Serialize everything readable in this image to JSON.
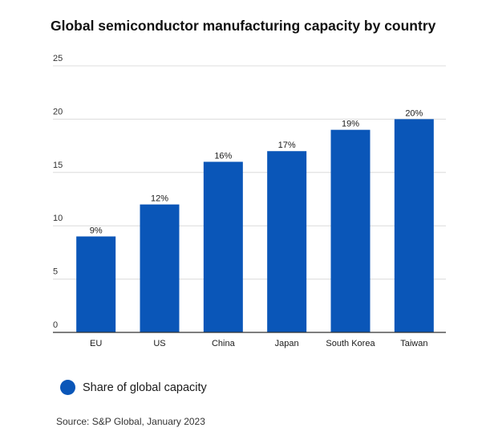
{
  "chart_data": {
    "type": "bar",
    "title": "Global semiconductor manufacturing capacity by country",
    "categories": [
      "EU",
      "US",
      "China",
      "Japan",
      "South Korea",
      "Taiwan"
    ],
    "series": [
      {
        "name": "Share of global capacity",
        "values": [
          9,
          12,
          16,
          17,
          19,
          20
        ],
        "color": "#0a56b8"
      }
    ],
    "data_labels": [
      "9%",
      "12%",
      "16%",
      "17%",
      "19%",
      "20%"
    ],
    "xlabel": "",
    "ylabel": "",
    "ylim": [
      0,
      25
    ],
    "yticks": [
      0,
      5,
      10,
      15,
      20,
      25
    ],
    "grid": true,
    "legend_position": "bottom-left"
  },
  "source": "Source: S&P Global, January 2023"
}
